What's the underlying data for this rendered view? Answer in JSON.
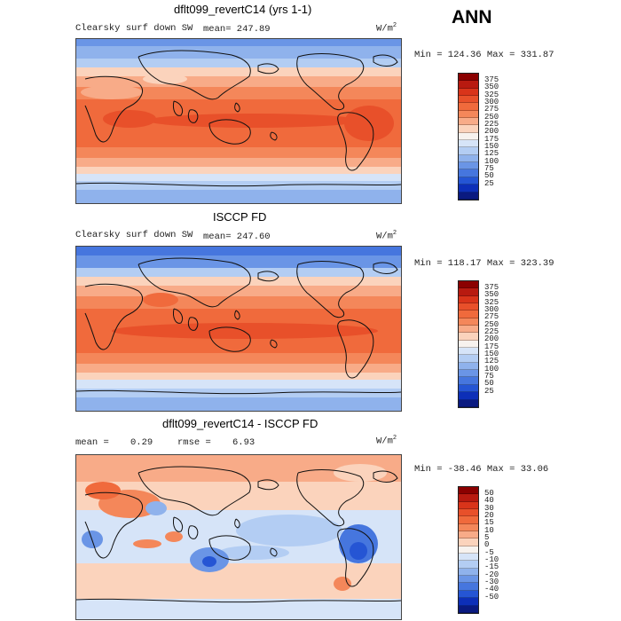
{
  "season": "ANN",
  "panels": [
    {
      "title": "dflt099_revertC14 (yrs 1-1)",
      "variable": "Clearsky surf down SW",
      "stats": "mean= 247.89",
      "units": "W/m",
      "units_exp": "2",
      "minmax": "Min = 124.36 Max = 331.87",
      "colorbar": {
        "labels": [
          "375",
          "350",
          "325",
          "300",
          "275",
          "250",
          "225",
          "200",
          "175",
          "150",
          "125",
          "100",
          "75",
          "50",
          "25"
        ],
        "colors": [
          "#8b0000",
          "#b81a10",
          "#d9341a",
          "#e8502a",
          "#f06a3c",
          "#f4875a",
          "#f8ab88",
          "#fbd3bc",
          "#f7f2ee",
          "#d6e4f8",
          "#b3cdf3",
          "#8fb2ec",
          "#6a95e6",
          "#4676de",
          "#2555d4",
          "#0d2fb8",
          "#0a1a80"
        ]
      }
    },
    {
      "title": "ISCCP FD",
      "variable": "Clearsky surf down SW",
      "stats": "mean= 247.60",
      "units": "W/m",
      "units_exp": "2",
      "minmax": "Min = 118.17 Max = 323.39",
      "colorbar": {
        "labels": [
          "375",
          "350",
          "325",
          "300",
          "275",
          "250",
          "225",
          "200",
          "175",
          "150",
          "125",
          "100",
          "75",
          "50",
          "25"
        ],
        "colors": [
          "#8b0000",
          "#b81a10",
          "#d9341a",
          "#e8502a",
          "#f06a3c",
          "#f4875a",
          "#f8ab88",
          "#fbd3bc",
          "#f7f2ee",
          "#d6e4f8",
          "#b3cdf3",
          "#8fb2ec",
          "#6a95e6",
          "#4676de",
          "#2555d4",
          "#0d2fb8",
          "#0a1a80"
        ]
      }
    },
    {
      "title": "dflt099_revertC14 - ISCCP FD",
      "stats_mean_label": "mean =",
      "stats_mean_value": "0.29",
      "stats_rmse_label": "rmse =",
      "stats_rmse_value": "6.93",
      "units": "W/m",
      "units_exp": "2",
      "minmax": "Min = -38.46 Max =   33.06",
      "colorbar": {
        "labels": [
          "50",
          "40",
          "30",
          "20",
          "15",
          "10",
          "5",
          "0",
          "-5",
          "-10",
          "-15",
          "-20",
          "-30",
          "-40",
          "-50"
        ],
        "colors": [
          "#8b0000",
          "#b81a10",
          "#d9341a",
          "#e8502a",
          "#f06a3c",
          "#f4875a",
          "#f8ab88",
          "#fbd3bc",
          "#f7f2ee",
          "#d6e4f8",
          "#b3cdf3",
          "#8fb2ec",
          "#6a95e6",
          "#4676de",
          "#2555d4",
          "#0d2fb8",
          "#0a1a80"
        ]
      }
    }
  ],
  "map_colors": {
    "deep_red": "#e8502a",
    "red": "#f06a3c",
    "orange": "#f4875a",
    "salmon": "#f8ab88",
    "peach": "#fbd3bc",
    "white": "#f7f2ee",
    "pale_blue": "#d6e4f8",
    "light_blue": "#b3cdf3",
    "blue": "#8fb2ec",
    "mid_blue": "#6a95e6",
    "dark_blue": "#4676de",
    "coast": "#111111"
  }
}
